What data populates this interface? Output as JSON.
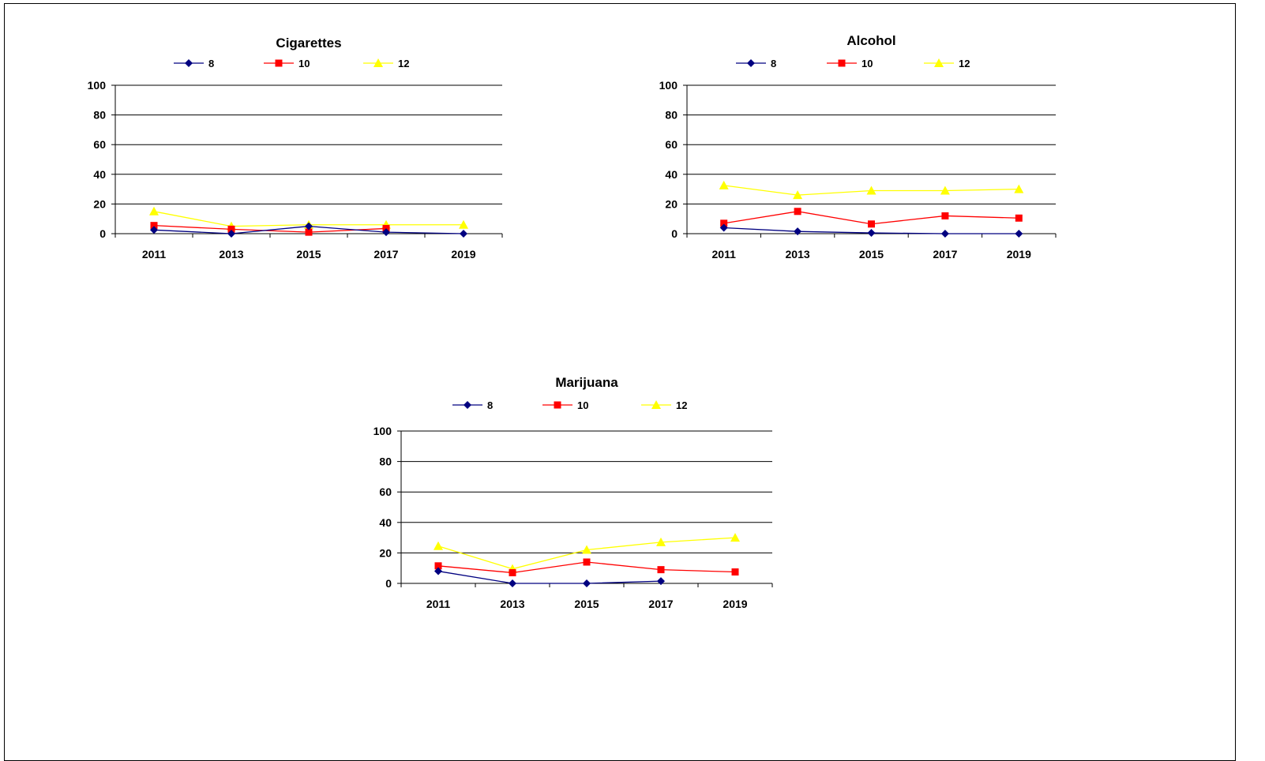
{
  "chart_data": [
    {
      "type": "line",
      "title": "Cigarettes",
      "categories": [
        "2011",
        "2013",
        "2015",
        "2017",
        "2019"
      ],
      "ylim": [
        0,
        100
      ],
      "yticks": [
        0,
        20,
        40,
        60,
        80,
        100
      ],
      "grid": true,
      "legend_position": "top",
      "series": [
        {
          "name": "8",
          "color": "#000080",
          "marker": "diamond",
          "values": [
            2.5,
            0,
            5,
            1,
            0
          ]
        },
        {
          "name": "10",
          "color": "#ff0000",
          "marker": "square",
          "values": [
            5.5,
            3,
            1,
            3.5,
            null
          ]
        },
        {
          "name": "12",
          "color": "#ffff00",
          "marker": "triangle",
          "values": [
            15,
            5,
            6,
            6,
            6
          ]
        }
      ]
    },
    {
      "type": "line",
      "title": "Alcohol",
      "categories": [
        "2011",
        "2013",
        "2015",
        "2017",
        "2019"
      ],
      "ylim": [
        0,
        100
      ],
      "yticks": [
        0,
        20,
        40,
        60,
        80,
        100
      ],
      "grid": true,
      "legend_position": "top",
      "series": [
        {
          "name": "8",
          "color": "#000080",
          "marker": "diamond",
          "values": [
            4,
            1.5,
            0.5,
            0,
            0
          ]
        },
        {
          "name": "10",
          "color": "#ff0000",
          "marker": "square",
          "values": [
            7,
            15,
            6.5,
            12,
            10.5
          ]
        },
        {
          "name": "12",
          "color": "#ffff00",
          "marker": "triangle",
          "values": [
            32.5,
            26,
            29,
            29,
            30
          ]
        }
      ]
    },
    {
      "type": "line",
      "title": "Marijuana",
      "categories": [
        "2011",
        "2013",
        "2015",
        "2017",
        "2019"
      ],
      "ylim": [
        0,
        100
      ],
      "yticks": [
        0,
        20,
        40,
        60,
        80,
        100
      ],
      "grid": true,
      "legend_position": "top",
      "series": [
        {
          "name": "8",
          "color": "#000080",
          "marker": "diamond",
          "values": [
            8,
            0,
            0,
            1.5,
            null
          ]
        },
        {
          "name": "10",
          "color": "#ff0000",
          "marker": "square",
          "values": [
            11.5,
            7,
            14,
            9,
            7.5
          ]
        },
        {
          "name": "12",
          "color": "#ffff00",
          "marker": "triangle",
          "values": [
            24.5,
            9.5,
            22,
            27,
            30
          ]
        }
      ]
    }
  ]
}
